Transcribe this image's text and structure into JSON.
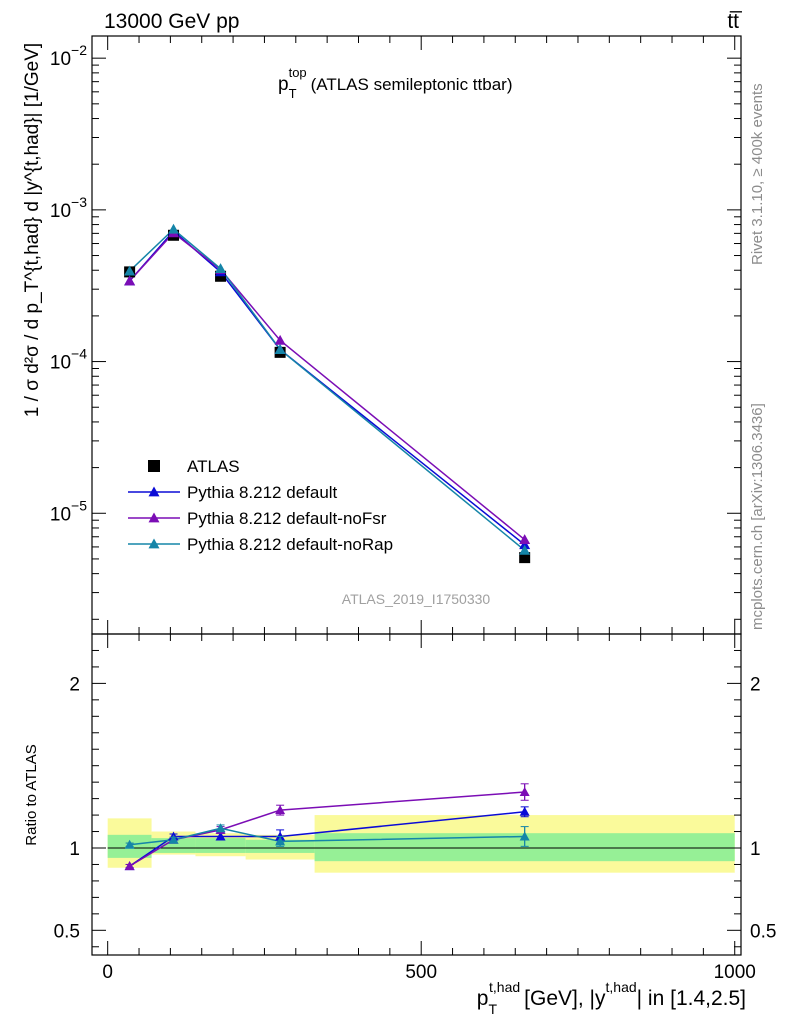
{
  "header": {
    "left": "13000 GeV pp",
    "right": "tt̅"
  },
  "side_labels": {
    "rivet": "Rivet 3.1.10, ≥ 400k events",
    "mcplots": "mcplots.cern.ch [arXiv:1306.3436]"
  },
  "watermark": "ATLAS_2019_I1750330",
  "colors": {
    "atlas": "#000000",
    "pythia": "#0b0bd6",
    "noFsr": "#7b0db5",
    "noRap": "#1585a8",
    "band_inner": "#96f096",
    "band_outer": "#fafa9b"
  },
  "chart_data": [
    {
      "type": "line",
      "title": {
        "p": "p",
        "sup": "top",
        "sub": "T",
        "rest": "(ATLAS semileptonic ttbar)"
      },
      "ylabel": "1 / σ d²σ / d p_T^{t,had} d |y^{t,had}| [1/GeV]",
      "yscale": "log",
      "ylim": [
        1.6e-06,
        0.014
      ],
      "xlim": [
        -25,
        1010
      ],
      "yticks": [
        {
          "v": 1e-05,
          "m": "10",
          "e": "−5"
        },
        {
          "v": 0.0001,
          "m": "10",
          "e": "−4"
        },
        {
          "v": 0.001,
          "m": "10",
          "e": "−3"
        },
        {
          "v": 0.01,
          "m": "10",
          "e": "−2"
        }
      ],
      "x": [
        35,
        105,
        180,
        275,
        665
      ],
      "series": [
        {
          "name": "ATLAS",
          "marker": "square",
          "color": "#000000",
          "values": [
            0.00039,
            0.00068,
            0.000365,
            0.000115,
            5.1e-06
          ]
        },
        {
          "name": "Pythia 8.212 default",
          "marker": "triangle",
          "color": "#0b0bd6",
          "values": [
            0.00034,
            0.000725,
            0.00039,
            0.00012,
            6.2e-06
          ]
        },
        {
          "name": "Pythia 8.212 default-noFsr",
          "marker": "triangle",
          "color": "#7b0db5",
          "values": [
            0.00034,
            0.000705,
            0.000405,
            0.000138,
            6.7e-06
          ]
        },
        {
          "name": "Pythia 8.212 default-noRap",
          "marker": "triangle",
          "color": "#1585a8",
          "values": [
            0.000395,
            0.000745,
            0.00041,
            0.00012,
            5.7e-06
          ]
        }
      ],
      "legend": "lower-left"
    },
    {
      "type": "line",
      "ylabel": "Ratio to ATLAS",
      "xlabel": {
        "p": "p",
        "sub": "T",
        "sup": "t,had",
        "mid": "[GeV], |y",
        "sup2": "t,had",
        "end": "| in [1.4,2.5]"
      },
      "ylim": [
        0.35,
        2.3
      ],
      "xlim": [
        -25,
        1010
      ],
      "yticks": [
        {
          "v": 0.5,
          "label": "0.5"
        },
        {
          "v": 1,
          "label": "1"
        },
        {
          "v": 2,
          "label": "2"
        }
      ],
      "xticks": [
        {
          "v": 0,
          "label": "0"
        },
        {
          "v": 500,
          "label": "500"
        },
        {
          "v": 1000,
          "label": "1000"
        }
      ],
      "bins": [
        {
          "lo": 0,
          "hi": 70,
          "inner": [
            0.94,
            1.08
          ],
          "outer": [
            0.88,
            1.18
          ]
        },
        {
          "lo": 70,
          "hi": 140,
          "inner": [
            0.97,
            1.06
          ],
          "outer": [
            0.96,
            1.1
          ]
        },
        {
          "lo": 140,
          "hi": 220,
          "inner": [
            0.97,
            1.06
          ],
          "outer": [
            0.95,
            1.09
          ]
        },
        {
          "lo": 220,
          "hi": 330,
          "inner": [
            0.97,
            1.05
          ],
          "outer": [
            0.93,
            1.08
          ]
        },
        {
          "lo": 330,
          "hi": 1000,
          "inner": [
            0.92,
            1.09
          ],
          "outer": [
            0.85,
            1.2
          ]
        }
      ],
      "series": [
        {
          "name": "Pythia 8.212 default",
          "color": "#0b0bd6",
          "values": [
            0.89,
            1.07,
            1.07,
            1.07,
            1.22
          ],
          "errors": [
            0.01,
            0.015,
            0.02,
            0.04,
            0.03
          ]
        },
        {
          "name": "Pythia 8.212 default-noFsr",
          "color": "#7b0db5",
          "values": [
            0.89,
            1.05,
            1.11,
            1.23,
            1.34
          ],
          "errors": [
            0.01,
            0.015,
            0.02,
            0.03,
            0.05
          ]
        },
        {
          "name": "Pythia 8.212 default-noRap",
          "color": "#1585a8",
          "values": [
            1.02,
            1.05,
            1.12,
            1.04,
            1.07
          ],
          "errors": [
            0.01,
            0.015,
            0.02,
            0.03,
            0.06
          ]
        }
      ]
    }
  ]
}
